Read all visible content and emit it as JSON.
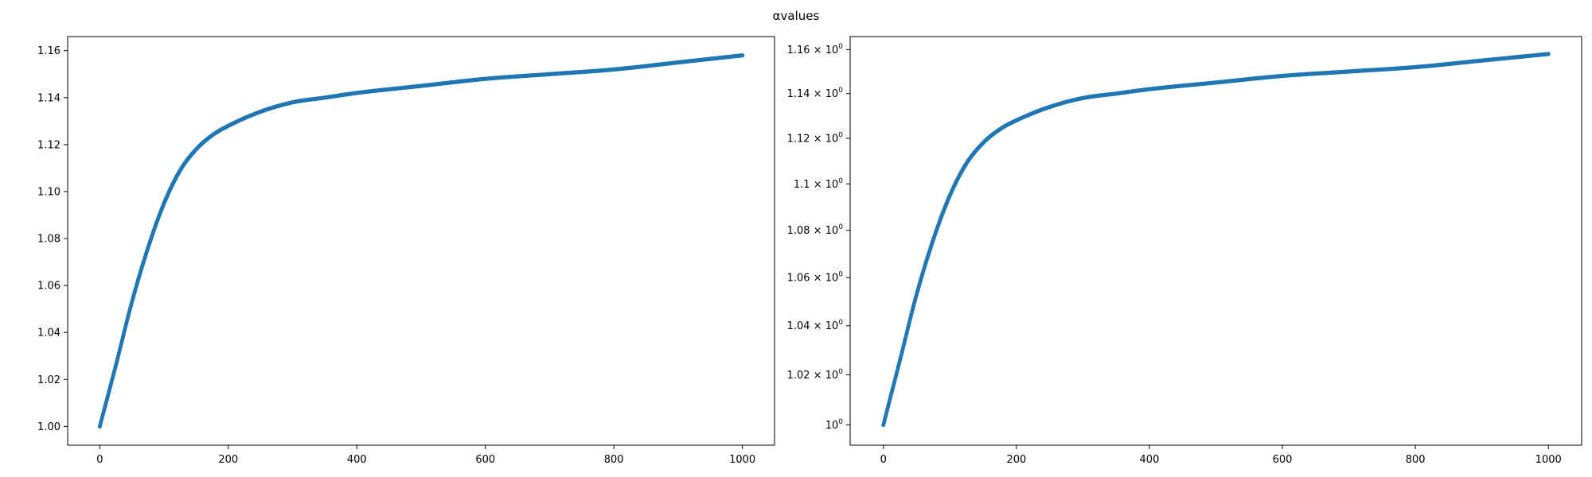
{
  "figure": {
    "title": "αvalues"
  },
  "chart_data": [
    {
      "type": "scatter",
      "yscale": "linear",
      "xlim": [
        -50,
        1050
      ],
      "ylim": [
        0.992,
        1.166
      ],
      "xticks": [
        0,
        200,
        400,
        600,
        800,
        1000
      ],
      "yticks": [
        1.0,
        1.02,
        1.04,
        1.06,
        1.08,
        1.1,
        1.12,
        1.14,
        1.16
      ],
      "ytick_labels": [
        "1.00",
        "1.02",
        "1.04",
        "1.06",
        "1.08",
        "1.10",
        "1.12",
        "1.14",
        "1.16"
      ],
      "series": [
        {
          "color": "#1f77b4",
          "x": [
            0,
            25,
            50,
            75,
            100,
            125,
            150,
            175,
            200,
            250,
            300,
            350,
            400,
            500,
            600,
            700,
            800,
            900,
            1000
          ],
          "y": [
            1.0,
            1.026,
            1.053,
            1.076,
            1.095,
            1.109,
            1.118,
            1.124,
            1.128,
            1.134,
            1.138,
            1.14,
            1.142,
            1.145,
            1.148,
            1.15,
            1.152,
            1.155,
            1.158
          ]
        }
      ]
    },
    {
      "type": "scatter",
      "yscale": "log",
      "xlim": [
        -50,
        1050
      ],
      "ylim": [
        0.992,
        1.166
      ],
      "xticks": [
        0,
        200,
        400,
        600,
        800,
        1000
      ],
      "yticks": [
        1.0,
        1.02,
        1.04,
        1.06,
        1.08,
        1.1,
        1.12,
        1.14,
        1.16
      ],
      "ytick_labels": [
        {
          "base": "10",
          "exp": "0"
        },
        {
          "base": "1.02 × 10",
          "exp": "0"
        },
        {
          "base": "1.04 × 10",
          "exp": "0"
        },
        {
          "base": "1.06 × 10",
          "exp": "0"
        },
        {
          "base": "1.08 × 10",
          "exp": "0"
        },
        {
          "base": "1.1 × 10",
          "exp": "0"
        },
        {
          "base": "1.12 × 10",
          "exp": "0"
        },
        {
          "base": "1.14 × 10",
          "exp": "0"
        },
        {
          "base": "1.16 × 10",
          "exp": "0"
        }
      ],
      "series": [
        {
          "color": "#1f77b4",
          "x": [
            0,
            25,
            50,
            75,
            100,
            125,
            150,
            175,
            200,
            250,
            300,
            350,
            400,
            500,
            600,
            700,
            800,
            900,
            1000
          ],
          "y": [
            1.0,
            1.026,
            1.053,
            1.076,
            1.095,
            1.109,
            1.118,
            1.124,
            1.128,
            1.134,
            1.138,
            1.14,
            1.142,
            1.145,
            1.148,
            1.15,
            1.152,
            1.155,
            1.158
          ]
        }
      ]
    }
  ]
}
